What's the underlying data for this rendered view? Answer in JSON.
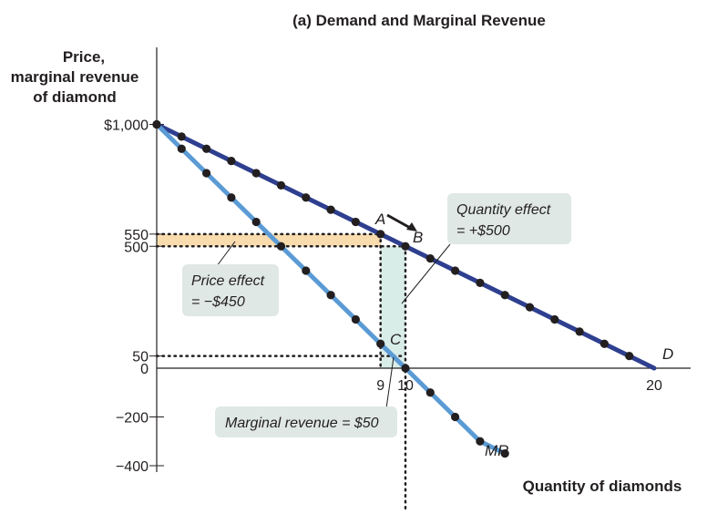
{
  "chart_data": {
    "type": "line",
    "title": "(a) Demand and Marginal Revenue",
    "ylabel": [
      "Price,",
      "marginal revenue",
      "of diamond"
    ],
    "xlabel": "Quantity of diamonds",
    "xlim": [
      0,
      20
    ],
    "ylim": [
      -400,
      1000
    ],
    "y_ticks": [
      {
        "value": 1000,
        "label": "$1,000"
      },
      {
        "value": 550,
        "label": "550"
      },
      {
        "value": 500,
        "label": "500"
      },
      {
        "value": 50,
        "label": "50"
      },
      {
        "value": 0,
        "label": "0"
      },
      {
        "value": -200,
        "label": "−200"
      },
      {
        "value": -400,
        "label": "−400"
      }
    ],
    "x_ticks": [
      {
        "value": 9,
        "label": "9"
      },
      {
        "value": 10,
        "label": "10"
      },
      {
        "value": 20,
        "label": "20"
      }
    ],
    "series": [
      {
        "name": "D",
        "color": "#2e3f8f",
        "x": [
          0,
          1,
          2,
          3,
          4,
          5,
          6,
          7,
          8,
          9,
          10,
          11,
          12,
          13,
          14,
          15,
          16,
          17,
          18,
          19,
          20
        ],
        "values": [
          1000,
          950,
          900,
          850,
          800,
          750,
          700,
          650,
          600,
          550,
          500,
          450,
          400,
          350,
          300,
          250,
          200,
          150,
          100,
          50,
          0
        ]
      },
      {
        "name": "MR",
        "color": "#5b9bd5",
        "x": [
          0,
          1,
          2,
          3,
          4,
          5,
          6,
          7,
          8,
          9,
          10,
          11,
          12,
          13,
          14
        ],
        "values": [
          1000,
          900,
          800,
          700,
          600,
          500,
          400,
          300,
          200,
          100,
          0,
          -100,
          -200,
          -300,
          -350
        ]
      }
    ],
    "points": [
      {
        "label": "A",
        "x": 9,
        "y": 550
      },
      {
        "label": "B",
        "x": 10,
        "y": 500
      },
      {
        "label": "C",
        "x": 10,
        "y": 50
      }
    ],
    "annotations": {
      "price_effect": [
        "Price effect",
        "= −$450"
      ],
      "quantity_effect": [
        "Quantity effect",
        "= +$500"
      ],
      "marginal_revenue": "Marginal revenue = $50"
    },
    "colors": {
      "demand": "#2e3f8f",
      "mr": "#5b9bd5",
      "price_effect_fill": "#f9dcae",
      "quantity_effect_fill": "#d9ede8",
      "callout_fill": "#dfe8e4"
    }
  }
}
